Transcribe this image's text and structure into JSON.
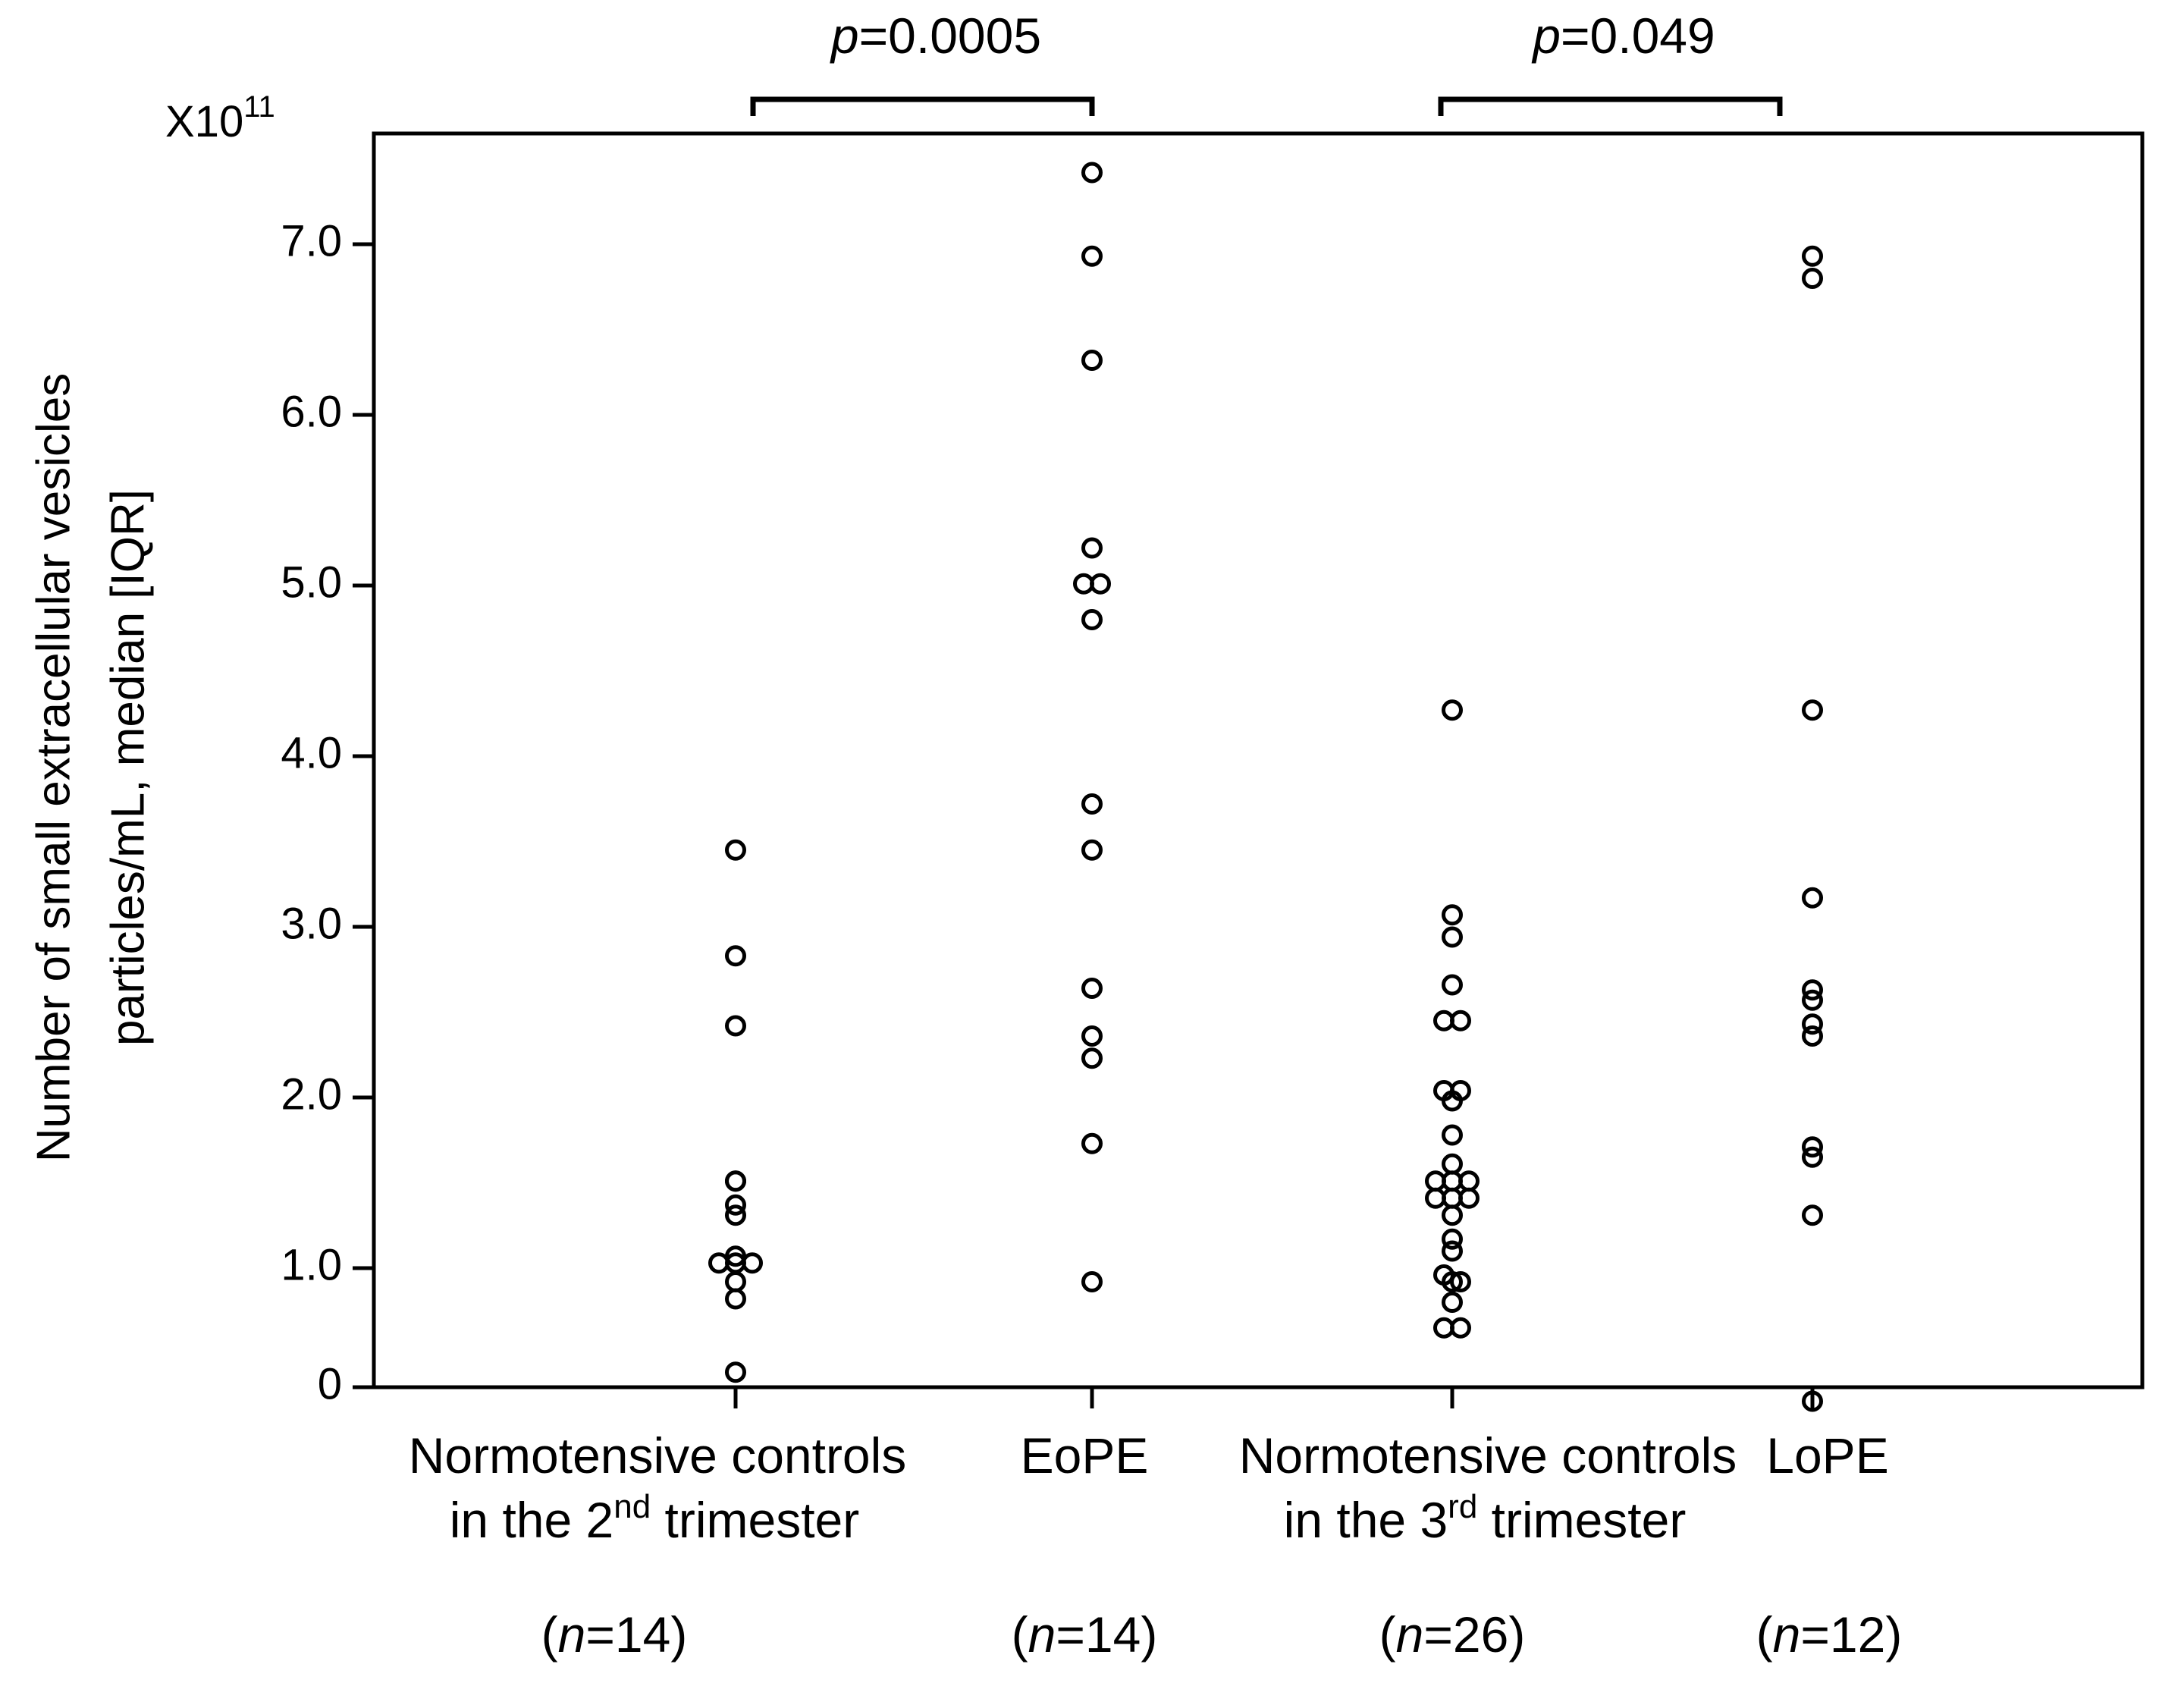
{
  "chart_data": {
    "type": "scatter",
    "title": "",
    "ylabel_line1": "Number of small extracellular vesicles",
    "ylabel_line2": "particles/mL, median [IQR]",
    "y_multiplier": "X10",
    "y_multiplier_exp": "11",
    "ylim": [
      0,
      7.45
    ],
    "yticks": [
      0,
      1.0,
      2.0,
      3.0,
      4.0,
      5.0,
      6.0,
      7.0
    ],
    "ytick_labels": [
      "0",
      "1.0",
      "2.0",
      "3.0",
      "4.0",
      "5.0",
      "6.0",
      "7.0"
    ],
    "groups": [
      {
        "label_line1": "Normotensive controls",
        "label_line2_pre": "in the 2",
        "label_line2_sup": "nd",
        "label_line2_post": " trimester",
        "n_var": "n",
        "n_text": "=14",
        "values": [
          3.45,
          2.83,
          2.42,
          1.51,
          1.51,
          1.37,
          1.31,
          1.07,
          1.03,
          1.03,
          1.03,
          0.92,
          0.82,
          0.39
        ],
        "offsets": [
          0,
          0,
          0,
          0,
          0,
          0,
          0,
          0,
          -1,
          0,
          1,
          0,
          0,
          0
        ]
      },
      {
        "label_line1": "EoPE",
        "label_line2_pre": "",
        "label_line2_sup": "",
        "label_line2_post": "",
        "n_var": "n",
        "n_text": "=14",
        "values": [
          7.42,
          6.93,
          6.32,
          5.22,
          5.01,
          5.01,
          4.8,
          3.72,
          3.45,
          2.64,
          2.36,
          2.23,
          1.73,
          0.92
        ],
        "offsets": [
          0,
          0,
          0,
          0,
          -0.5,
          0.5,
          0,
          0,
          0,
          0,
          0,
          0,
          0,
          0
        ]
      },
      {
        "label_line1": "Normotensive controls",
        "label_line2_pre": "in the 3",
        "label_line2_sup": "rd",
        "label_line2_post": " trimester",
        "n_var": "n",
        "n_text": "=26",
        "values": [
          4.27,
          3.07,
          2.94,
          2.66,
          2.45,
          2.45,
          2.04,
          2.04,
          1.98,
          1.78,
          1.61,
          1.51,
          1.51,
          1.51,
          1.41,
          1.41,
          1.41,
          1.31,
          1.17,
          1.1,
          0.96,
          0.92,
          0.92,
          0.8,
          0.65,
          0.65
        ],
        "offsets": [
          0,
          0,
          0,
          0,
          -0.5,
          0.5,
          -0.5,
          0.5,
          0,
          0,
          0,
          -1,
          0,
          1,
          -1,
          0,
          1,
          0,
          0,
          0,
          -0.5,
          0.5,
          0,
          0,
          -0.5,
          0.5
        ]
      },
      {
        "label_line1": "LoPE",
        "label_line2_pre": "",
        "label_line2_sup": "",
        "label_line2_post": "",
        "n_var": "n",
        "n_text": "=12",
        "values": [
          6.93,
          6.8,
          4.27,
          3.17,
          2.63,
          2.57,
          2.43,
          2.36,
          1.71,
          1.65,
          1.31,
          0.22
        ],
        "offsets": [
          0,
          0,
          0,
          0,
          0,
          0,
          0,
          0,
          0,
          0,
          0,
          0
        ]
      }
    ],
    "comparisons": [
      {
        "from": 0,
        "to": 1,
        "p_var": "p",
        "p_text": "=0.0005"
      },
      {
        "from": 2,
        "to": 3,
        "p_var": "p",
        "p_text": "=0.049"
      }
    ]
  }
}
